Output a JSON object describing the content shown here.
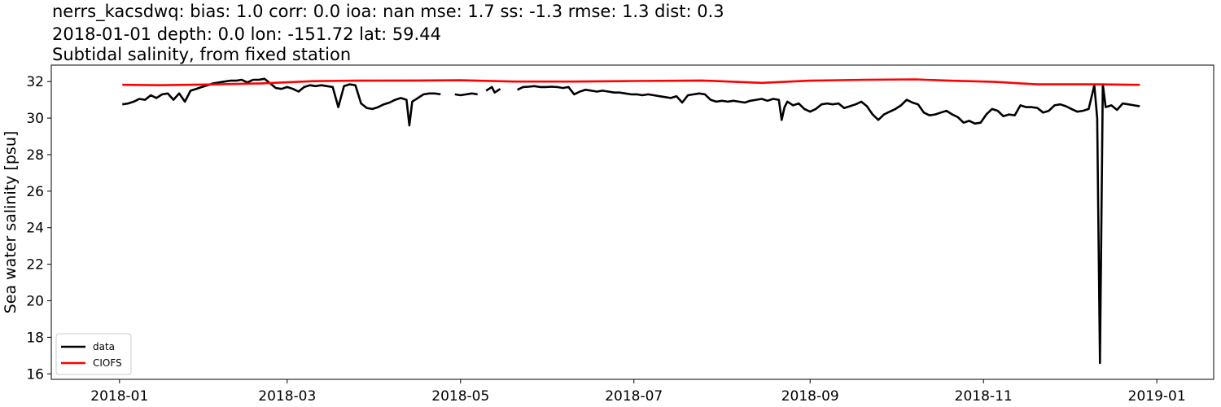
{
  "chart_data": {
    "type": "line",
    "title_lines": [
      "nerrs_kacsdwq: bias: 1.0  corr: 0.0  ioa: nan  mse: 1.7  ss: -1.3  rmse: 1.3  dist: 0.3",
      "2018-01-01 depth: 0.0 lon: -151.72 lat: 59.44",
      "Subtidal salinity, from fixed station"
    ],
    "xlabel": "",
    "ylabel": "Sea water salinity [psu]",
    "xlim": [
      "2017-12-08",
      "2019-01-21"
    ],
    "ylim": [
      15.7,
      32.9
    ],
    "x_ticks": [
      "2018-01",
      "2018-03",
      "2018-05",
      "2018-07",
      "2018-09",
      "2018-11",
      "2019-01"
    ],
    "y_ticks": [
      16,
      18,
      20,
      22,
      24,
      26,
      28,
      30,
      32
    ],
    "grid": false,
    "legend": {
      "position": "lower-left"
    },
    "series": [
      {
        "name": "data",
        "color": "#000000",
        "points": [
          [
            "2018-01-02",
            30.75
          ],
          [
            "2018-01-04",
            30.8
          ],
          [
            "2018-01-06",
            30.9
          ],
          [
            "2018-01-08",
            31.05
          ],
          [
            "2018-01-10",
            31.0
          ],
          [
            "2018-01-12",
            31.25
          ],
          [
            "2018-01-14",
            31.1
          ],
          [
            "2018-01-16",
            31.3
          ],
          [
            "2018-01-18",
            31.35
          ],
          [
            "2018-01-20",
            31.0
          ],
          [
            "2018-01-22",
            31.35
          ],
          [
            "2018-01-24",
            30.9
          ],
          [
            "2018-01-26",
            31.5
          ],
          [
            "2018-01-28",
            31.6
          ],
          [
            "2018-01-30",
            31.7
          ],
          [
            "2018-02-01",
            31.8
          ],
          [
            "2018-02-03",
            31.9
          ],
          [
            "2018-02-05",
            31.95
          ],
          [
            "2018-02-07",
            32.0
          ],
          [
            "2018-02-09",
            32.05
          ],
          [
            "2018-02-11",
            32.05
          ],
          [
            "2018-02-13",
            32.1
          ],
          [
            "2018-02-15",
            31.95
          ],
          [
            "2018-02-17",
            32.1
          ],
          [
            "2018-02-19",
            32.1
          ],
          [
            "2018-02-21",
            32.15
          ],
          [
            "2018-02-23",
            31.9
          ],
          [
            "2018-02-25",
            31.65
          ],
          [
            "2018-02-27",
            31.6
          ],
          [
            "2018-03-01",
            31.7
          ],
          [
            "2018-03-03",
            31.6
          ],
          [
            "2018-03-05",
            31.45
          ],
          [
            "2018-03-07",
            31.7
          ],
          [
            "2018-03-09",
            31.8
          ],
          [
            "2018-03-11",
            31.75
          ],
          [
            "2018-03-13",
            31.8
          ],
          [
            "2018-03-15",
            31.75
          ],
          [
            "2018-03-17",
            31.7
          ],
          [
            "2018-03-19",
            30.6
          ],
          [
            "2018-03-21",
            31.75
          ],
          [
            "2018-03-23",
            31.85
          ],
          [
            "2018-03-25",
            31.8
          ],
          [
            "2018-03-27",
            30.8
          ],
          [
            "2018-03-29",
            30.55
          ],
          [
            "2018-03-31",
            30.5
          ],
          [
            "2018-04-02",
            30.6
          ],
          [
            "2018-04-04",
            30.75
          ],
          [
            "2018-04-06",
            30.85
          ],
          [
            "2018-04-08",
            31.0
          ],
          [
            "2018-04-10",
            31.1
          ],
          [
            "2018-04-12",
            31.0
          ],
          [
            "2018-04-13",
            29.6
          ],
          [
            "2018-04-14",
            30.9
          ],
          [
            "2018-04-16",
            31.1
          ],
          [
            "2018-04-18",
            31.3
          ],
          [
            "2018-04-20",
            31.35
          ],
          [
            "2018-04-22",
            31.35
          ],
          [
            "2018-04-24",
            31.3
          ],
          null,
          [
            "2018-04-29",
            31.3
          ],
          [
            "2018-05-01",
            31.25
          ],
          [
            "2018-05-03",
            31.3
          ],
          [
            "2018-05-05",
            31.35
          ],
          [
            "2018-05-07",
            31.3
          ],
          null,
          [
            "2018-05-10",
            31.5
          ],
          [
            "2018-05-11",
            31.6
          ],
          [
            "2018-05-12",
            31.7
          ],
          [
            "2018-05-13",
            31.4
          ],
          [
            "2018-05-15",
            31.6
          ],
          null,
          [
            "2018-05-21",
            31.55
          ],
          [
            "2018-05-23",
            31.7
          ],
          [
            "2018-05-25",
            31.72
          ],
          [
            "2018-05-27",
            31.75
          ],
          [
            "2018-05-29",
            31.7
          ],
          [
            "2018-05-31",
            31.7
          ],
          [
            "2018-06-02",
            31.72
          ],
          [
            "2018-06-04",
            31.7
          ],
          [
            "2018-06-06",
            31.65
          ],
          [
            "2018-06-08",
            31.7
          ],
          [
            "2018-06-10",
            31.3
          ],
          [
            "2018-06-12",
            31.45
          ],
          [
            "2018-06-14",
            31.55
          ],
          [
            "2018-06-16",
            31.5
          ],
          [
            "2018-06-18",
            31.45
          ],
          [
            "2018-06-20",
            31.5
          ],
          [
            "2018-06-22",
            31.45
          ],
          [
            "2018-06-24",
            31.4
          ],
          [
            "2018-06-26",
            31.4
          ],
          [
            "2018-06-28",
            31.35
          ],
          [
            "2018-06-30",
            31.3
          ],
          [
            "2018-07-02",
            31.3
          ],
          [
            "2018-07-04",
            31.25
          ],
          [
            "2018-07-06",
            31.3
          ],
          [
            "2018-07-08",
            31.25
          ],
          [
            "2018-07-10",
            31.2
          ],
          [
            "2018-07-12",
            31.15
          ],
          [
            "2018-07-14",
            31.1
          ],
          [
            "2018-07-16",
            31.2
          ],
          [
            "2018-07-18",
            30.85
          ],
          [
            "2018-07-20",
            31.25
          ],
          [
            "2018-07-22",
            31.3
          ],
          [
            "2018-07-24",
            31.35
          ],
          [
            "2018-07-26",
            31.3
          ],
          [
            "2018-07-28",
            31.0
          ],
          [
            "2018-07-30",
            30.9
          ],
          [
            "2018-08-01",
            30.95
          ],
          [
            "2018-08-03",
            30.9
          ],
          [
            "2018-08-05",
            30.95
          ],
          [
            "2018-08-07",
            30.9
          ],
          [
            "2018-08-09",
            30.85
          ],
          [
            "2018-08-11",
            30.95
          ],
          [
            "2018-08-13",
            31.0
          ],
          [
            "2018-08-15",
            31.05
          ],
          [
            "2018-08-17",
            30.95
          ],
          [
            "2018-08-19",
            31.05
          ],
          [
            "2018-08-21",
            31.0
          ],
          [
            "2018-08-22",
            29.9
          ],
          [
            "2018-08-23",
            30.6
          ],
          [
            "2018-08-24",
            30.9
          ],
          [
            "2018-08-26",
            30.7
          ],
          [
            "2018-08-28",
            30.8
          ],
          [
            "2018-08-30",
            30.5
          ],
          [
            "2018-09-01",
            30.35
          ],
          [
            "2018-09-03",
            30.5
          ],
          [
            "2018-09-05",
            30.75
          ],
          [
            "2018-09-07",
            30.8
          ],
          [
            "2018-09-09",
            30.75
          ],
          [
            "2018-09-11",
            30.8
          ],
          [
            "2018-09-13",
            30.55
          ],
          [
            "2018-09-15",
            30.65
          ],
          [
            "2018-09-17",
            30.75
          ],
          [
            "2018-09-19",
            30.9
          ],
          [
            "2018-09-21",
            30.65
          ],
          [
            "2018-09-23",
            30.2
          ],
          [
            "2018-09-25",
            29.9
          ],
          [
            "2018-09-27",
            30.2
          ],
          [
            "2018-09-29",
            30.35
          ],
          [
            "2018-10-01",
            30.5
          ],
          [
            "2018-10-03",
            30.7
          ],
          [
            "2018-10-05",
            31.0
          ],
          [
            "2018-10-07",
            30.85
          ],
          [
            "2018-10-09",
            30.75
          ],
          [
            "2018-10-11",
            30.3
          ],
          [
            "2018-10-13",
            30.15
          ],
          [
            "2018-10-15",
            30.2
          ],
          [
            "2018-10-17",
            30.3
          ],
          [
            "2018-10-19",
            30.4
          ],
          [
            "2018-10-21",
            30.2
          ],
          [
            "2018-10-23",
            30.05
          ],
          [
            "2018-10-25",
            29.75
          ],
          [
            "2018-10-27",
            29.85
          ],
          [
            "2018-10-29",
            29.7
          ],
          [
            "2018-10-31",
            29.75
          ],
          [
            "2018-11-02",
            30.2
          ],
          [
            "2018-11-04",
            30.5
          ],
          [
            "2018-11-06",
            30.4
          ],
          [
            "2018-11-08",
            30.1
          ],
          [
            "2018-11-10",
            30.2
          ],
          [
            "2018-11-12",
            30.15
          ],
          [
            "2018-11-14",
            30.7
          ],
          [
            "2018-11-16",
            30.6
          ],
          [
            "2018-11-18",
            30.6
          ],
          [
            "2018-11-20",
            30.55
          ],
          [
            "2018-11-22",
            30.3
          ],
          [
            "2018-11-24",
            30.4
          ],
          [
            "2018-11-26",
            30.7
          ],
          [
            "2018-11-28",
            30.75
          ],
          [
            "2018-11-30",
            30.65
          ],
          [
            "2018-12-02",
            30.5
          ],
          [
            "2018-12-04",
            30.35
          ],
          [
            "2018-12-06",
            30.4
          ],
          [
            "2018-12-08",
            30.5
          ],
          [
            "2018-12-10",
            31.8
          ],
          [
            "2018-12-11",
            30.0
          ],
          [
            "2018-12-12",
            16.6
          ],
          [
            "2018-12-13",
            31.85
          ],
          [
            "2018-12-14",
            30.6
          ],
          [
            "2018-12-16",
            30.7
          ],
          [
            "2018-12-18",
            30.45
          ],
          [
            "2018-12-20",
            30.8
          ],
          [
            "2018-12-22",
            30.75
          ],
          [
            "2018-12-24",
            30.7
          ],
          [
            "2018-12-26",
            30.65
          ]
        ]
      },
      {
        "name": "CIOFS",
        "color": "#ff0000",
        "points": [
          [
            "2018-01-02",
            31.82
          ],
          [
            "2018-01-15",
            31.8
          ],
          [
            "2018-02-01",
            31.84
          ],
          [
            "2018-02-20",
            31.9
          ],
          [
            "2018-03-10",
            32.02
          ],
          [
            "2018-03-25",
            32.05
          ],
          [
            "2018-04-15",
            32.06
          ],
          [
            "2018-05-01",
            32.07
          ],
          [
            "2018-05-20",
            32.0
          ],
          [
            "2018-06-10",
            32.0
          ],
          [
            "2018-07-01",
            32.03
          ],
          [
            "2018-07-25",
            32.06
          ],
          [
            "2018-08-15",
            31.93
          ],
          [
            "2018-09-01",
            32.05
          ],
          [
            "2018-09-20",
            32.1
          ],
          [
            "2018-10-08",
            32.12
          ],
          [
            "2018-10-20",
            32.05
          ],
          [
            "2018-11-05",
            31.98
          ],
          [
            "2018-11-20",
            31.85
          ],
          [
            "2018-12-10",
            31.85
          ],
          [
            "2018-12-26",
            31.82
          ]
        ]
      }
    ]
  }
}
